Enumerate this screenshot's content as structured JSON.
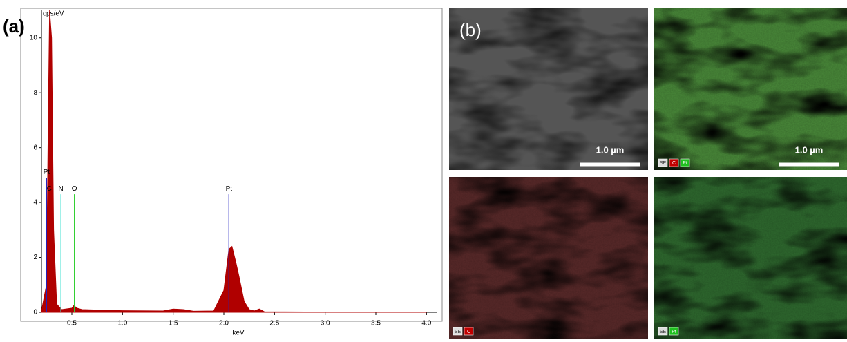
{
  "chart_data": {
    "type": "area",
    "x_label": "keV",
    "y_label": "cps/eV",
    "color": "#b00000",
    "x": [
      0.2,
      0.25,
      0.27,
      0.28,
      0.3,
      0.32,
      0.35,
      0.4,
      0.5,
      0.52,
      0.55,
      0.6,
      0.8,
      1.0,
      1.4,
      1.5,
      1.6,
      1.7,
      1.9,
      2.0,
      2.05,
      2.08,
      2.12,
      2.15,
      2.2,
      2.25,
      2.3,
      2.35,
      2.4,
      3.0,
      4.0
    ],
    "values": [
      0.05,
      1,
      8,
      11,
      10,
      3,
      0.3,
      0.1,
      0.15,
      0.25,
      0.15,
      0.1,
      0.08,
      0.06,
      0.05,
      0.12,
      0.1,
      0.04,
      0.05,
      0.8,
      2.3,
      2.4,
      1.8,
      1.3,
      0.4,
      0.1,
      0.05,
      0.12,
      0.02,
      0.01,
      0.01
    ],
    "xlim": [
      0.2,
      4.1
    ],
    "ylim": [
      0,
      11
    ],
    "xticks": [
      {
        "value": 0.5,
        "label": "0.5"
      },
      {
        "value": 1,
        "label": "1.0"
      },
      {
        "value": 1.5,
        "label": "1.5"
      },
      {
        "value": 2,
        "label": "2.0"
      },
      {
        "value": 2.5,
        "label": "2.5"
      },
      {
        "value": 3,
        "label": "3.0"
      },
      {
        "value": 3.5,
        "label": "3.5"
      },
      {
        "value": 4,
        "label": "4.0"
      }
    ],
    "yticks": [
      0,
      2,
      4,
      6,
      8,
      10
    ],
    "markers": [
      {
        "label": "Pt",
        "x": 0.25,
        "height": 4.9,
        "color": "#2020c0"
      },
      {
        "label": "C",
        "x": 0.277,
        "height": 4.3,
        "color": "#b00000"
      },
      {
        "label": "N",
        "x": 0.392,
        "height": 4.3,
        "color": "#40e0d0"
      },
      {
        "label": "O",
        "x": 0.525,
        "height": 4.3,
        "color": "#30d030"
      },
      {
        "label": "Pt",
        "x": 2.05,
        "height": 4.3,
        "color": "#2020c0"
      }
    ]
  },
  "labels": {
    "a": "(a)",
    "b": "(b)"
  },
  "panels": [
    {
      "scale_bar": "1.0 µm"
    },
    {
      "scale_bar": "1.0 µm",
      "badges": [
        "SE",
        "C",
        "Pt"
      ]
    },
    {
      "badges": [
        "SE",
        "C"
      ]
    },
    {
      "badges": [
        "SE",
        "Pt"
      ]
    }
  ]
}
